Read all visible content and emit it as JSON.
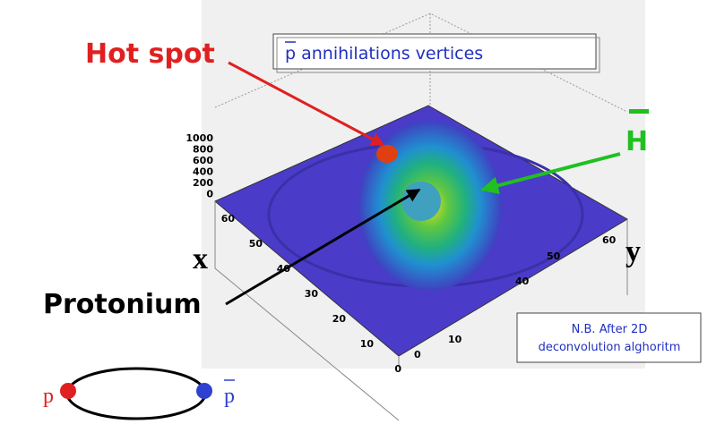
{
  "title_box": "p annihilations vertices",
  "hot_spot": "Hot spot",
  "antihydrogen": "H",
  "protonium": "Protonium",
  "x_axis": "x",
  "y_axis": "y",
  "note": [
    "N.B. After 2D",
    "deconvolution alghoritm"
  ],
  "z_ticks": [
    "1000",
    "800",
    "600",
    "400",
    "200",
    "0"
  ],
  "x_ticks": [
    "60",
    "50",
    "40",
    "30",
    "20",
    "10",
    "0"
  ],
  "y_ticks": [
    "0",
    "10",
    "40",
    "50",
    "60"
  ],
  "proton": "p",
  "antiproton": "p"
}
